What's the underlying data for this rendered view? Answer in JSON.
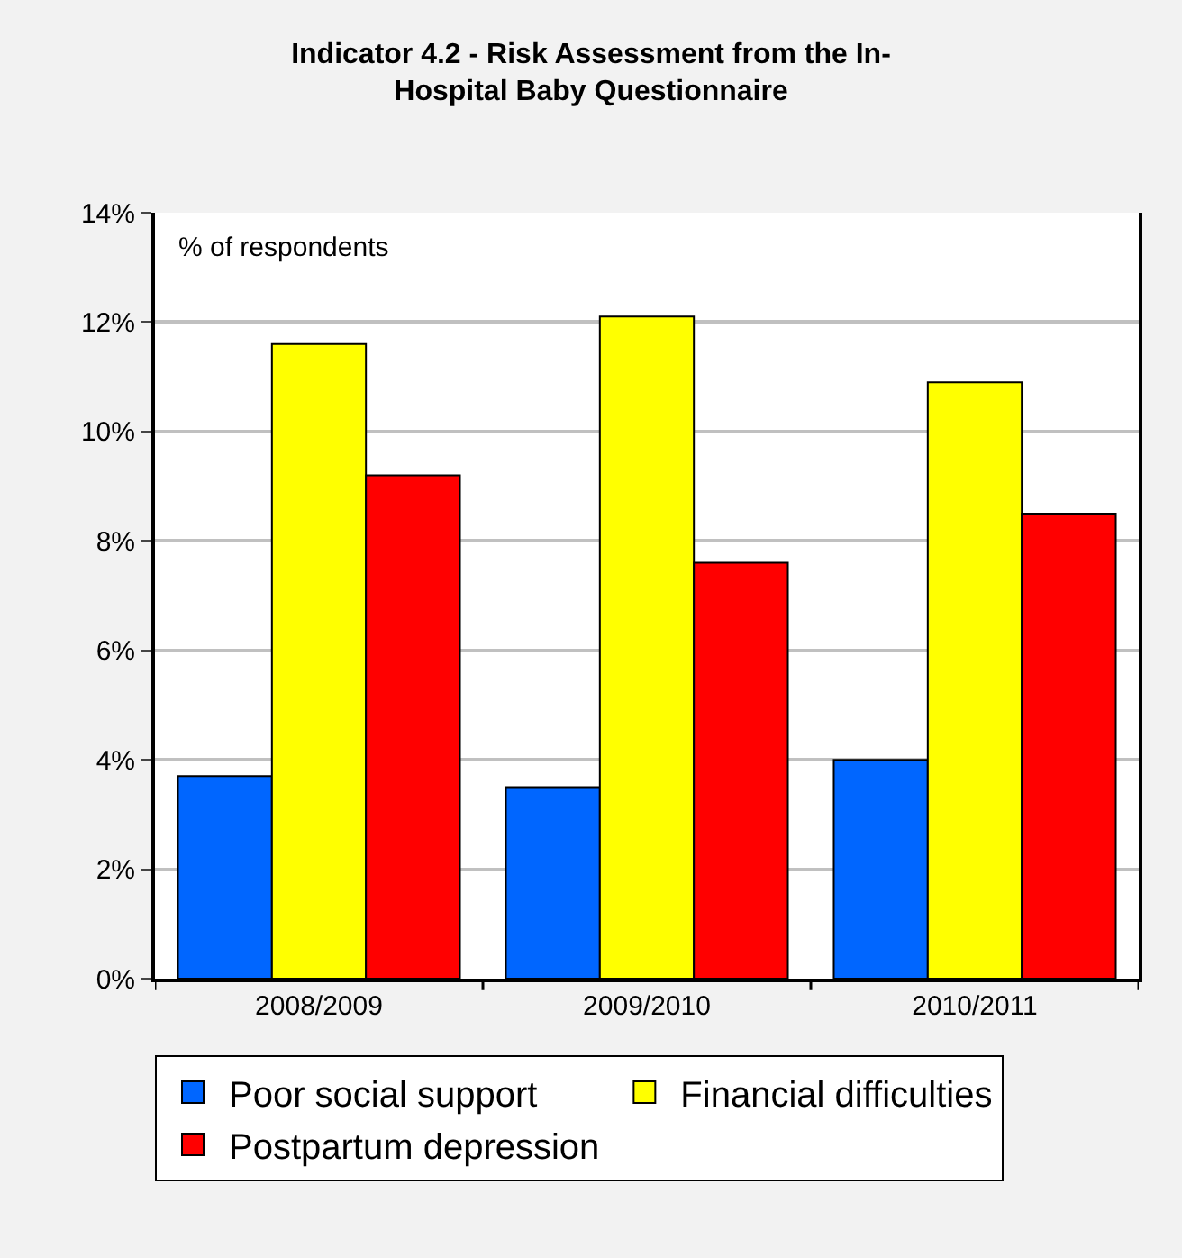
{
  "chart_data": {
    "type": "bar",
    "title": "Indicator 4.2 - Risk Assessment from the In-Hospital Baby Questionnaire",
    "annotations": [
      "% of respondents"
    ],
    "categories": [
      "2008/2009",
      "2009/2010",
      "2010/2011"
    ],
    "series": [
      {
        "name": "Poor social support",
        "color": "#0066ff",
        "values": [
          3.7,
          3.5,
          4.0
        ]
      },
      {
        "name": "Financial difficulties",
        "color": "#ffff00",
        "values": [
          11.6,
          12.1,
          10.9
        ]
      },
      {
        "name": "Postpartum depression",
        "color": "#ff0000",
        "values": [
          9.2,
          7.6,
          8.5
        ]
      }
    ],
    "ylim": [
      0,
      14
    ],
    "yticks": [
      {
        "value": 0,
        "label": "0%"
      },
      {
        "value": 2,
        "label": "2%"
      },
      {
        "value": 4,
        "label": "4%"
      },
      {
        "value": 6,
        "label": "6%"
      },
      {
        "value": 8,
        "label": "8%"
      },
      {
        "value": 10,
        "label": "10%"
      },
      {
        "value": 12,
        "label": "12%"
      },
      {
        "value": 14,
        "label": "14%"
      }
    ],
    "grid": "y",
    "legend": "bottom"
  }
}
